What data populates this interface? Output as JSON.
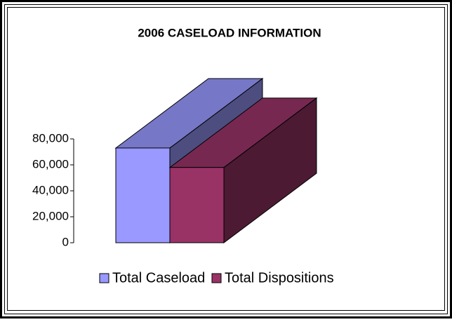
{
  "chart_data": {
    "type": "bar",
    "title": "2006 CASELOAD INFORMATION",
    "categories": [
      null
    ],
    "series": [
      {
        "name": "Total Caseload",
        "color": "#9999ff",
        "values": [
          73000
        ]
      },
      {
        "name": "Total Dispositions",
        "color": "#993366",
        "values": [
          58000
        ]
      }
    ],
    "ylim": [
      0,
      80000
    ],
    "yticks": [
      0,
      {
        "value": 20000,
        "label": "20,000"
      },
      {
        "value": 40000,
        "label": "40,000"
      },
      {
        "value": 60000,
        "label": "60,000"
      },
      {
        "value": 80000,
        "label": "80,000"
      }
    ],
    "legend": "bottom"
  }
}
